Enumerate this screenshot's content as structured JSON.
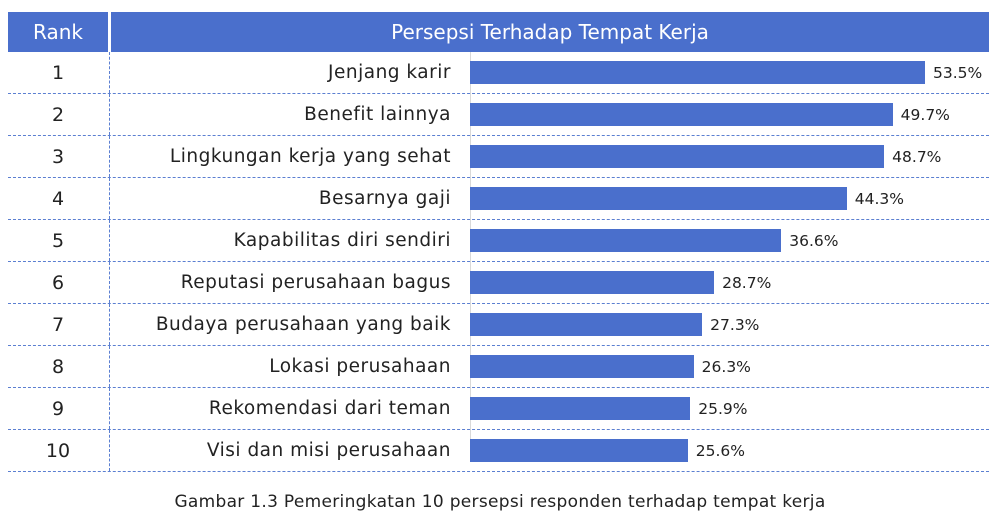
{
  "header": {
    "rank_label": "Rank",
    "title": "Persepsi Terhadap Tempat Kerja"
  },
  "caption": "Gambar 1.3 Pemeringkatan 10 persepsi responden terhadap tempat kerja",
  "colors": {
    "bar": "#4a6fcc",
    "header_bg": "#4a6fcc",
    "grid_dash": "#5b7fd1"
  },
  "chart_data": {
    "type": "bar",
    "orientation": "horizontal",
    "title": "Persepsi Terhadap Tempat Kerja",
    "rank_header": "Rank",
    "ranks": [
      "1",
      "2",
      "3",
      "4",
      "5",
      "6",
      "7",
      "8",
      "9",
      "10"
    ],
    "categories": [
      "Jenjang karir",
      "Benefit lainnya",
      "Lingkungan kerja yang sehat",
      "Besarnya gaji",
      "Kapabilitas diri sendiri",
      "Reputasi perusahaan bagus",
      "Budaya perusahaan yang baik",
      "Lokasi perusahaan",
      "Rekomendasi dari teman",
      "Visi dan misi perusahaan"
    ],
    "values": [
      53.5,
      49.7,
      48.7,
      44.3,
      36.6,
      28.7,
      27.3,
      26.3,
      25.9,
      25.6
    ],
    "value_labels": [
      "53.5%",
      "49.7%",
      "48.7%",
      "44.3%",
      "36.6%",
      "28.7%",
      "27.3%",
      "26.3%",
      "25.9%",
      "25.6%"
    ],
    "unit": "%",
    "xlim": [
      0,
      53.5
    ],
    "grid": false,
    "legend": "none"
  }
}
